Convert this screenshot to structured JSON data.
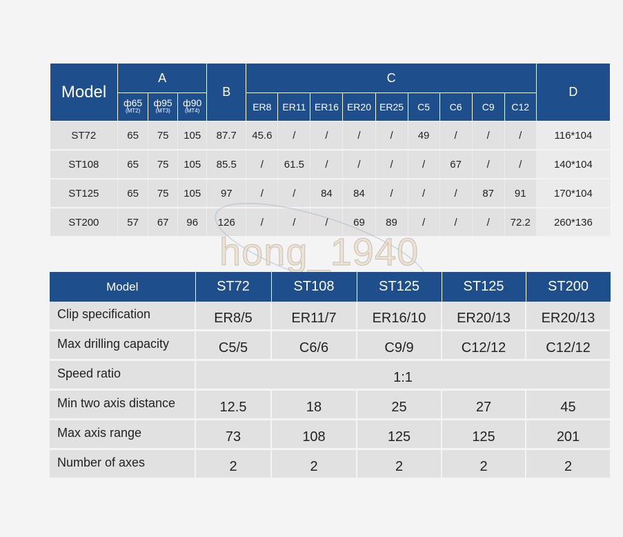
{
  "spec_table": {
    "model_header": "Model",
    "group_a": "A",
    "group_b": "B",
    "group_c": "C",
    "group_d": "D",
    "a_sub": [
      {
        "main": "ф65",
        "small": "(MT2)"
      },
      {
        "main": "ф95",
        "small": "(MT3)"
      },
      {
        "main": "ф90",
        "small": "(MT4)"
      }
    ],
    "c_sub": [
      "ER8",
      "ER11",
      "ER16",
      "ER20",
      "ER25",
      "C5",
      "C6",
      "C9",
      "C12"
    ],
    "rows": [
      {
        "model": "ST72",
        "a": [
          "65",
          "75",
          "105"
        ],
        "b": "87.7",
        "c": [
          "45.6",
          "/",
          "/",
          "/",
          "/",
          "49",
          "/",
          "/",
          "/"
        ],
        "d": "116*104"
      },
      {
        "model": "ST108",
        "a": [
          "65",
          "75",
          "105"
        ],
        "b": "85.5",
        "c": [
          "/",
          "61.5",
          "/",
          "/",
          "/",
          "/",
          "67",
          "/",
          "/"
        ],
        "d": "140*104"
      },
      {
        "model": "ST125",
        "a": [
          "65",
          "75",
          "105"
        ],
        "b": "97",
        "c": [
          "/",
          "/",
          "84",
          "84",
          "/",
          "/",
          "/",
          "87",
          "91"
        ],
        "d": "170*104"
      },
      {
        "model": "ST200",
        "a": [
          "57",
          "67",
          "96"
        ],
        "b": "126",
        "c": [
          "/",
          "/",
          "/",
          "69",
          "89",
          "/",
          "/",
          "/",
          "72.2"
        ],
        "d": "260*136"
      }
    ]
  },
  "watermark": "hong_1940",
  "param_table": {
    "header": [
      "Model",
      "ST72",
      "ST108",
      "ST125",
      "ST125",
      "ST200"
    ],
    "rows": [
      {
        "label": "Clip specification",
        "values": [
          "ER8/5",
          "ER11/7",
          "ER16/10",
          "ER20/13",
          "ER20/13"
        ]
      },
      {
        "label": "Max drilling capacity",
        "values": [
          "C5/5",
          "C6/6",
          "C9/9",
          "C12/12",
          "C12/12"
        ]
      },
      {
        "label": "Speed ratio",
        "merged": "1:1"
      },
      {
        "label": "Min two axis distance",
        "values": [
          "12.5",
          "18",
          "25",
          "27",
          "45"
        ]
      },
      {
        "label": "Max axis range",
        "values": [
          "73",
          "108",
          "125",
          "125",
          "201"
        ]
      },
      {
        "label": "Number of axes",
        "values": [
          "2",
          "2",
          "2",
          "2",
          "2"
        ]
      }
    ]
  },
  "colors": {
    "header_blue": "#1f4e8c",
    "cell_gray": "#e1e1e1",
    "background": "#f4f4f4"
  }
}
